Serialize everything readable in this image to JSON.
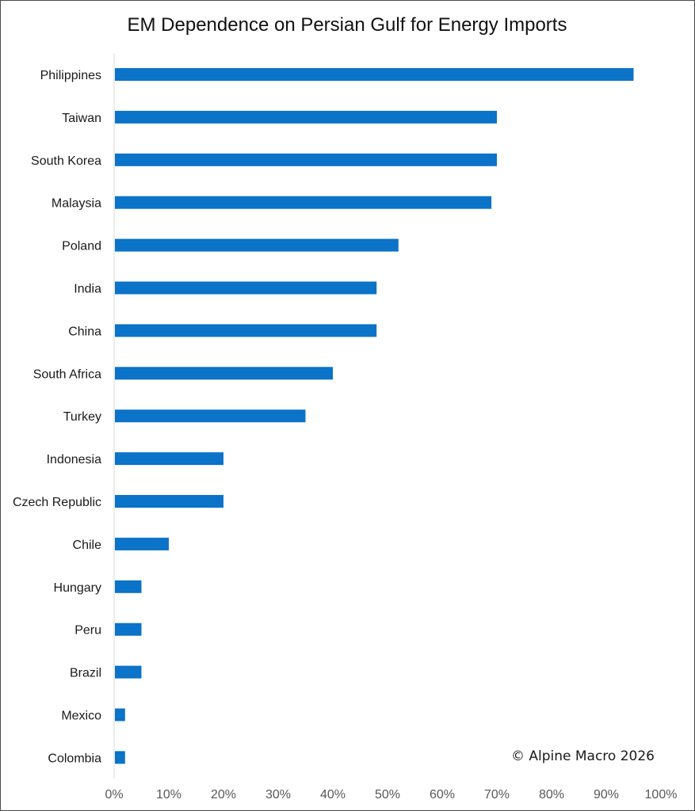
{
  "chart_data": {
    "type": "bar",
    "orientation": "horizontal",
    "title": "EM Dependence on Persian Gulf for Energy Imports",
    "xlabel": "",
    "ylabel": "",
    "categories": [
      "Philippines",
      "Taiwan",
      "South Korea",
      "Malaysia",
      "Poland",
      "India",
      "China",
      "South Africa",
      "Turkey",
      "Indonesia",
      "Czech Republic",
      "Chile",
      "Hungary",
      "Peru",
      "Brazil",
      "Mexico",
      "Colombia"
    ],
    "values": [
      95,
      70,
      70,
      69,
      52,
      48,
      48,
      40,
      35,
      20,
      20,
      10,
      5,
      5,
      5,
      2,
      2
    ],
    "xlim": [
      0,
      100
    ],
    "xticks": [
      0,
      10,
      20,
      30,
      40,
      50,
      60,
      70,
      80,
      90,
      100
    ],
    "xtick_labels": [
      "0%",
      "10%",
      "20%",
      "30%",
      "40%",
      "50%",
      "60%",
      "70%",
      "80%",
      "90%",
      "100%"
    ],
    "bar_color": "#0B73C8",
    "grid": false,
    "legend": "none",
    "annotation": "© Alpine Macro 2026"
  }
}
